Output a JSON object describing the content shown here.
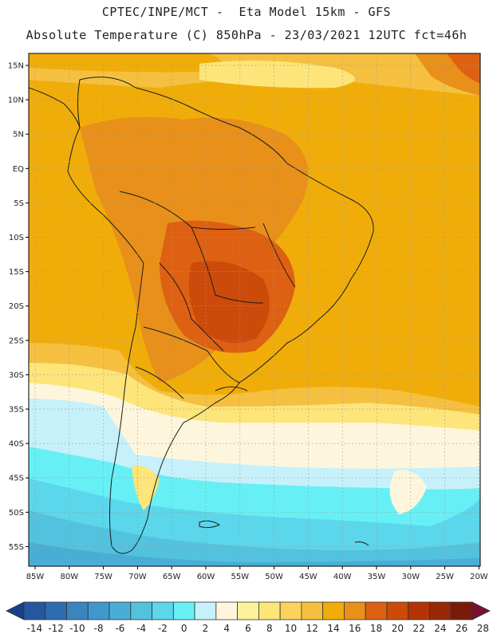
{
  "header": {
    "line1": "CPTEC/INPE/MCT -  Eta Model 15km - GFS",
    "line2": "Absolute Temperature (C) 850hPa - 23/03/2021 12UTC fct=46h"
  },
  "axes": {
    "lat_labels": [
      "15N",
      "10N",
      "5N",
      "EQ",
      "5S",
      "10S",
      "15S",
      "20S",
      "25S",
      "30S",
      "35S",
      "40S",
      "45S",
      "50S",
      "55S"
    ],
    "lon_labels": [
      "85W",
      "80W",
      "75W",
      "70W",
      "65W",
      "60W",
      "55W",
      "50W",
      "45W",
      "40W",
      "35W",
      "30W",
      "25W",
      "20W"
    ]
  },
  "colorbar": {
    "labels": [
      "-14",
      "-12",
      "-10",
      "-8",
      "-6",
      "-4",
      "-2",
      "0",
      "2",
      "4",
      "6",
      "8",
      "10",
      "12",
      "14",
      "16",
      "18",
      "20",
      "22",
      "24",
      "26",
      "28"
    ],
    "colors": [
      "#1a3f8c",
      "#2556a0",
      "#2e6cb1",
      "#3a84c0",
      "#3f98cc",
      "#48aed6",
      "#52c2df",
      "#5cd6ea",
      "#66f0f5",
      "#c6f1fb",
      "#fdf6dd",
      "#fdf29a",
      "#fde57a",
      "#fbd35a",
      "#f5c040",
      "#f0ad0a",
      "#e8901a",
      "#de6012",
      "#cc4a0a",
      "#b53405",
      "#962806",
      "#7a1b0a",
      "#7a1030"
    ]
  },
  "map_colors": {
    "land_border": "#1a1a1a",
    "grid": "#999999"
  }
}
